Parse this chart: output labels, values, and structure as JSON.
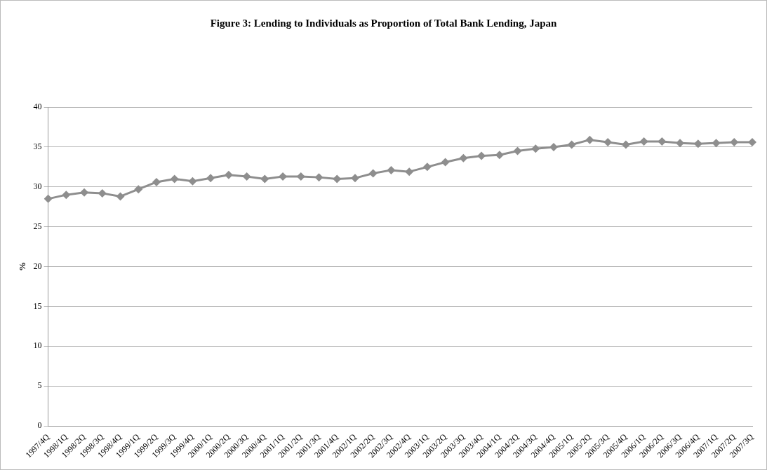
{
  "chart_data": {
    "type": "line",
    "title": "Figure 3: Lending to Individuals as Proportion of Total Bank Lending, Japan",
    "ylabel": "%",
    "categories": [
      "1997/4Q",
      "1998/1Q",
      "1998/2Q",
      "1998/3Q",
      "1998/4Q",
      "1999/1Q",
      "1999/2Q",
      "1999/3Q",
      "1999/4Q",
      "2000/1Q",
      "2000/2Q",
      "2000/3Q",
      "2000/4Q",
      "2001/1Q",
      "2001/2Q",
      "2001/3Q",
      "2001/4Q",
      "2002/1Q",
      "2002/2Q",
      "2002/3Q",
      "2002/4Q",
      "2003/1Q",
      "2003/2Q",
      "2003/3Q",
      "2003/4Q",
      "2004/1Q",
      "2004/2Q",
      "2004/3Q",
      "2004/4Q",
      "2005/1Q",
      "2005/2Q",
      "2005/3Q",
      "2005/4Q",
      "2006/1Q",
      "2006/2Q",
      "2006/3Q",
      "2006/4Q",
      "2007/1Q",
      "2007/2Q",
      "2007/3Q"
    ],
    "series": [
      {
        "color": "#8e8e8e",
        "values": [
          28.5,
          29.0,
          29.3,
          29.2,
          28.8,
          29.7,
          30.6,
          31.0,
          30.7,
          31.1,
          31.5,
          31.3,
          31.0,
          31.3,
          31.3,
          31.2,
          31.0,
          31.1,
          31.7,
          32.1,
          31.9,
          32.5,
          33.1,
          33.6,
          33.9,
          34.0,
          34.5,
          34.8,
          35.0,
          35.3,
          35.9,
          35.6,
          35.3,
          35.7,
          35.7,
          35.5,
          35.4,
          35.5,
          35.6,
          35.6
        ]
      }
    ],
    "ylim": [
      0,
      40
    ],
    "yticks": [
      0,
      5,
      10,
      15,
      20,
      25,
      30,
      35,
      40
    ],
    "grid": "y",
    "legend": false,
    "marker": "diamond",
    "line_style": "solid"
  }
}
